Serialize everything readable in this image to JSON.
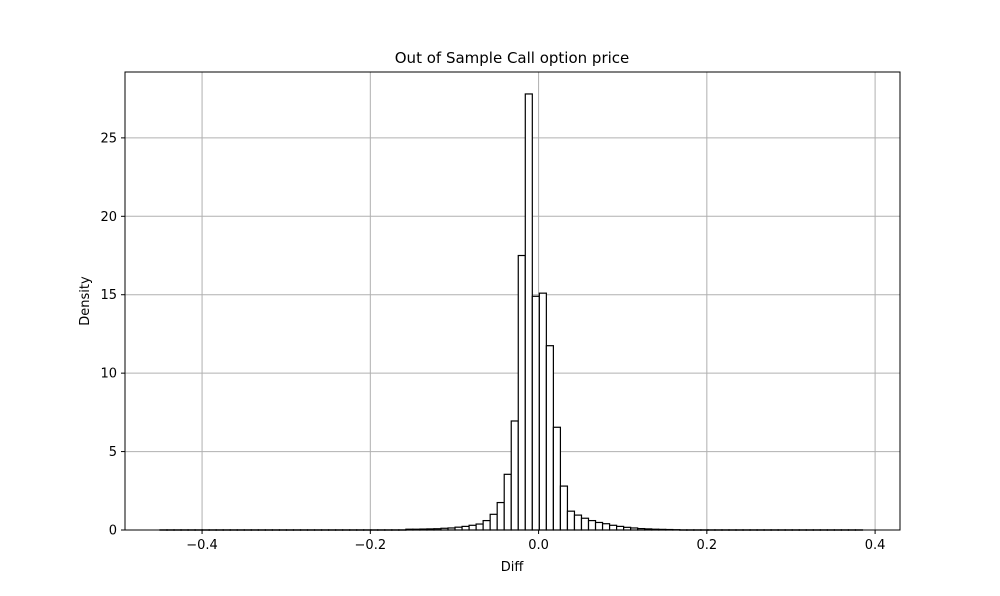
{
  "chart_data": {
    "type": "bar",
    "title": "Out of Sample Call option price",
    "xlabel": "Diff",
    "ylabel": "Density",
    "xlim": [
      -0.4916,
      0.4296
    ],
    "ylim": [
      0,
      29.2
    ],
    "xticks": [
      -0.4,
      -0.2,
      0.0,
      0.2,
      0.4
    ],
    "xtick_labels": [
      "−0.4",
      "−0.2",
      "0.0",
      "0.2",
      "0.4"
    ],
    "yticks": [
      0,
      5,
      10,
      15,
      20,
      25
    ],
    "ytick_labels": [
      "0",
      "5",
      "10",
      "15",
      "20",
      "25"
    ],
    "grid": true,
    "legend": "none",
    "bin_start": -0.45,
    "bin_width": 0.00835,
    "values": [
      0.01,
      0.01,
      0.01,
      0.01,
      0.01,
      0.01,
      0.01,
      0.01,
      0.01,
      0.01,
      0.01,
      0.01,
      0.01,
      0.01,
      0.01,
      0.01,
      0.01,
      0.01,
      0.01,
      0.01,
      0.01,
      0.01,
      0.01,
      0.01,
      0.01,
      0.01,
      0.01,
      0.01,
      0.01,
      0.01,
      0.01,
      0.01,
      0.01,
      0.01,
      0.01,
      0.05,
      0.05,
      0.06,
      0.07,
      0.08,
      0.11,
      0.13,
      0.18,
      0.23,
      0.3,
      0.38,
      0.6,
      1.0,
      1.75,
      3.55,
      6.95,
      17.5,
      27.8,
      14.9,
      15.1,
      11.75,
      6.55,
      2.8,
      1.2,
      0.95,
      0.75,
      0.6,
      0.48,
      0.4,
      0.3,
      0.23,
      0.17,
      0.13,
      0.09,
      0.07,
      0.05,
      0.04,
      0.03,
      0.02,
      0.01,
      0.01,
      0.01,
      0.01,
      0.01,
      0.01,
      0.01,
      0.01,
      0.01,
      0.01,
      0.01,
      0.01,
      0.01,
      0.01,
      0.01,
      0.01,
      0.01,
      0.01,
      0.01,
      0.01,
      0.01,
      0.01,
      0.01,
      0.01,
      0.01,
      0.01
    ],
    "colors": {
      "bar_fill": "#ffffff",
      "bar_edge": "#000000",
      "grid": "#b0b0b0",
      "axes": "#000000"
    }
  }
}
